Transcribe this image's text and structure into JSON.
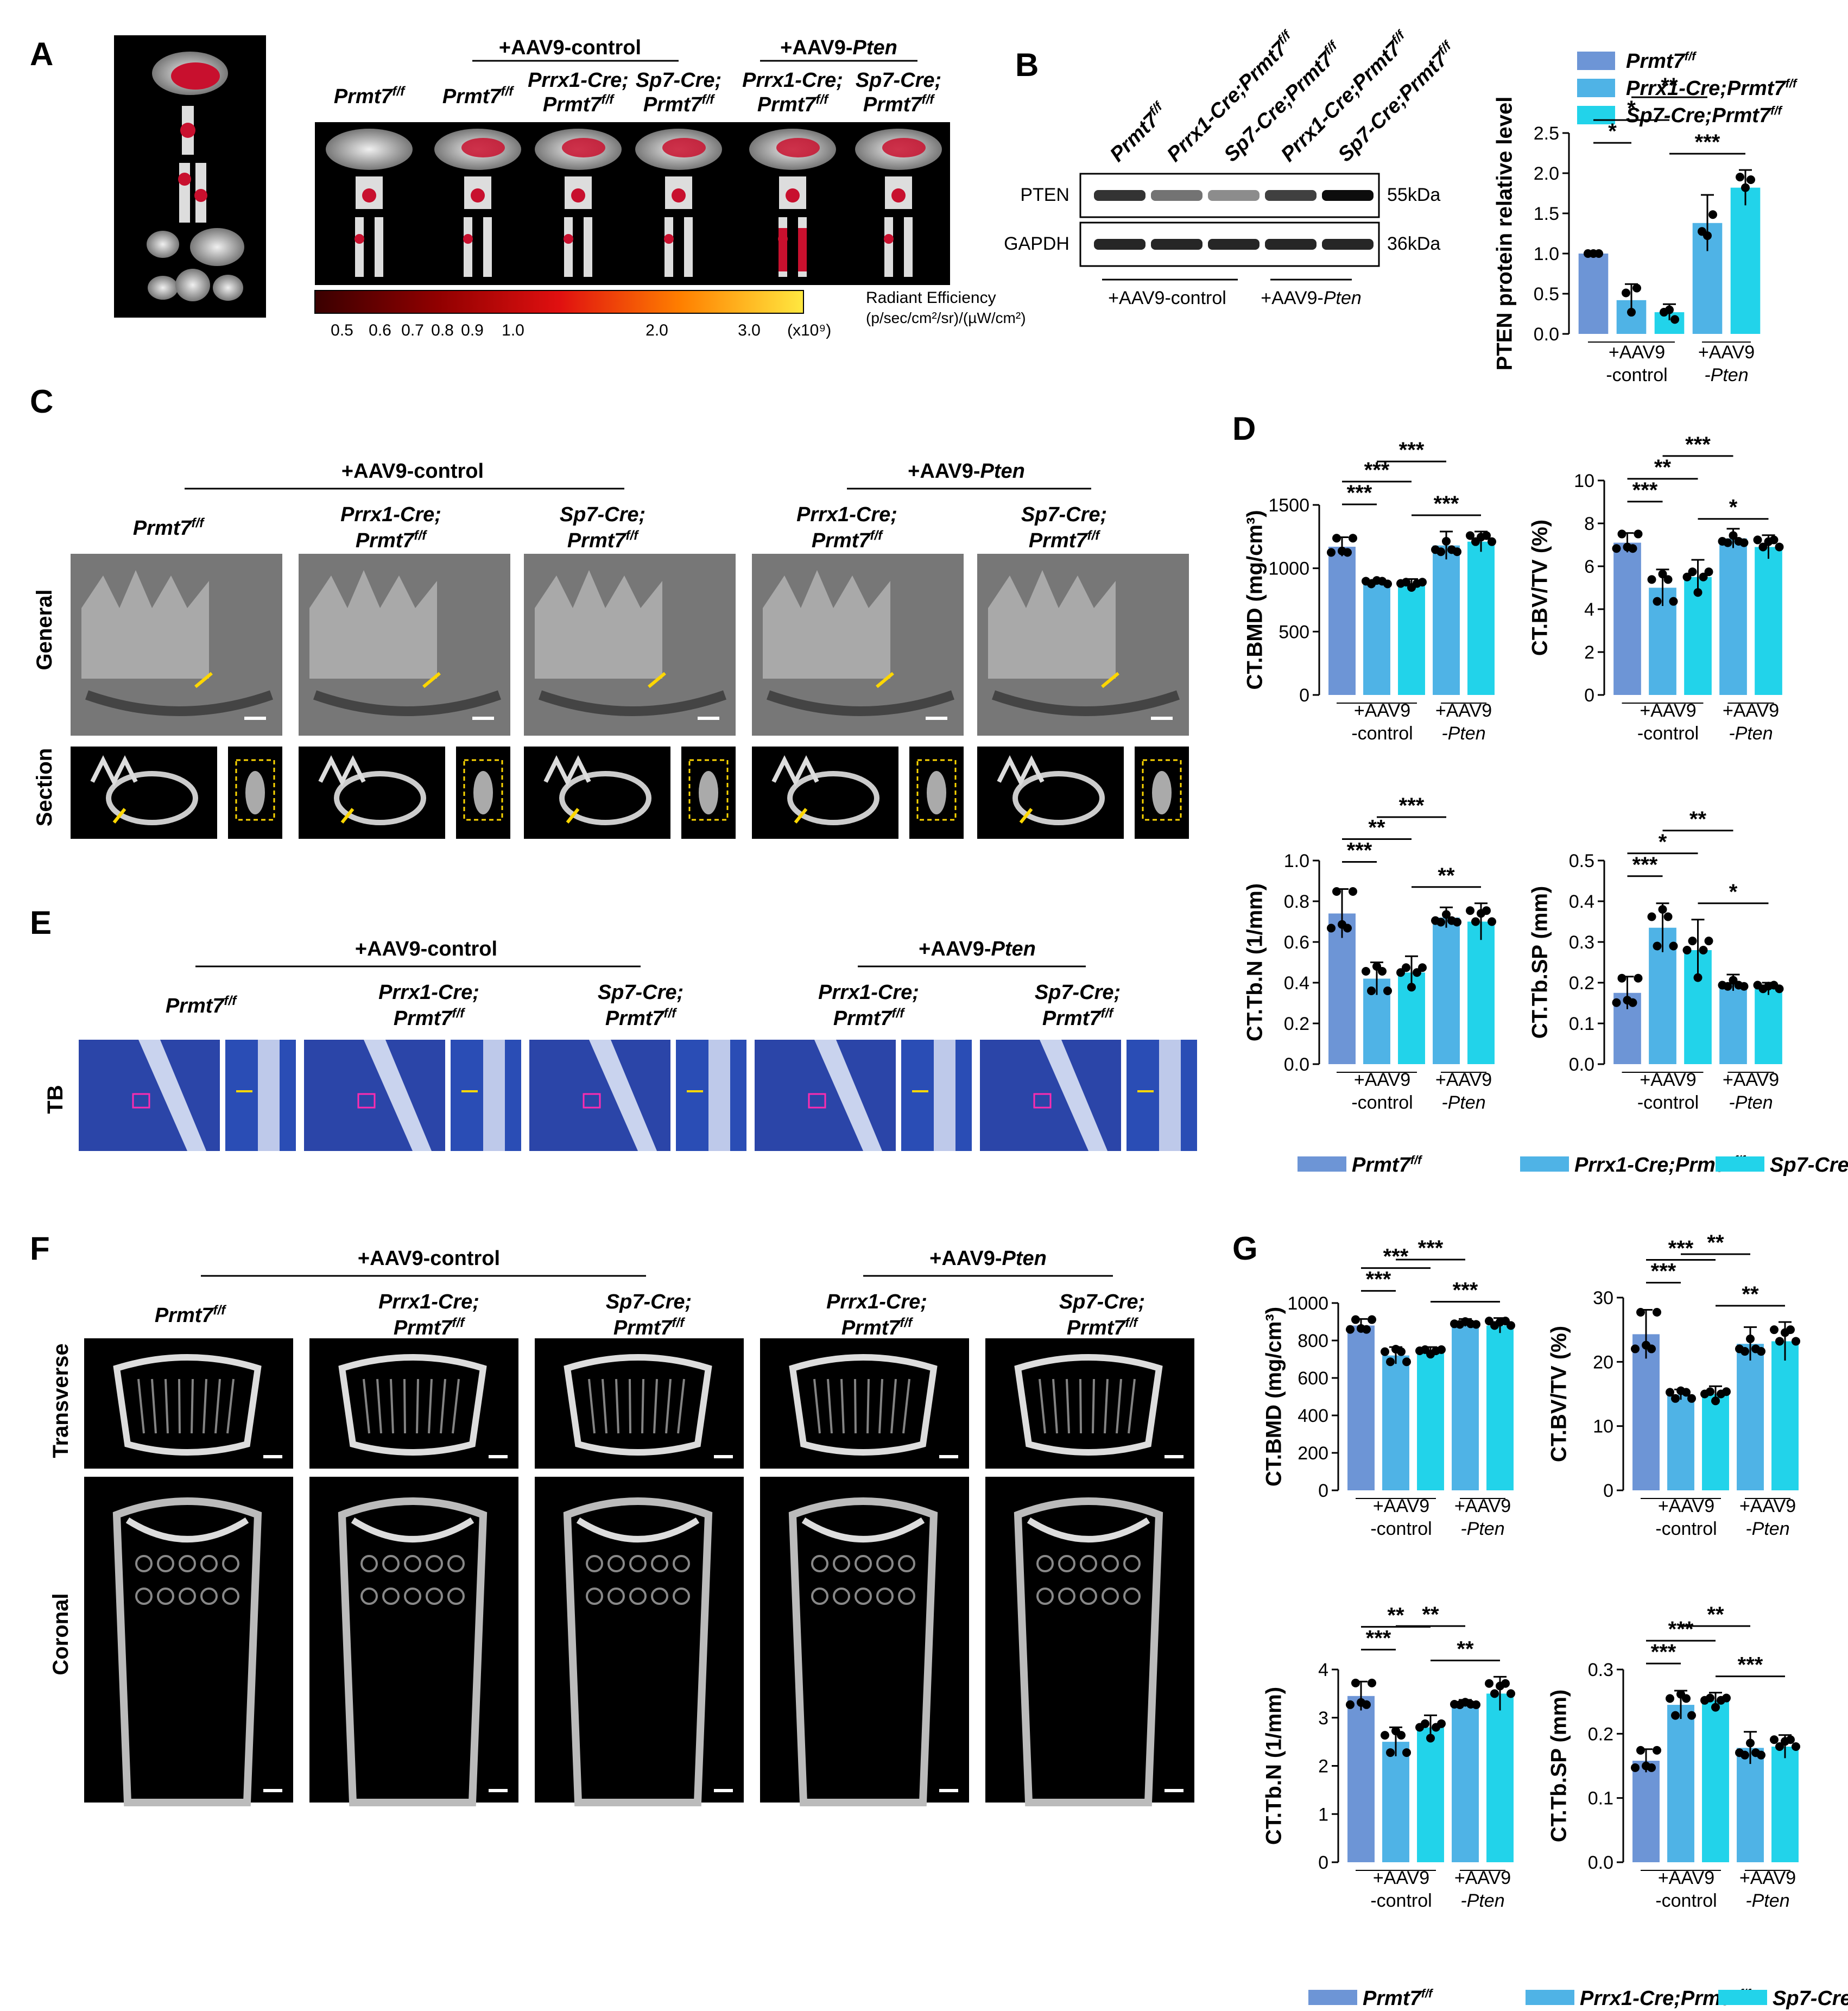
{
  "colors": {
    "g1": "#6d95d6",
    "g2": "#4fb3e6",
    "g3": "#22d3ea"
  },
  "groups": [
    "Prmt7",
    "Prrx1-Cre;Prmt7",
    "Sp7-Cre;Prmt7"
  ],
  "group_sup": "f/f",
  "panel_labels": {
    "A": "A",
    "B": "B",
    "C": "C",
    "D": "D",
    "E": "E",
    "F": "F",
    "G": "G"
  },
  "treatments": {
    "control": "+AAV9-control",
    "pten_prefix": "+AAV9-",
    "pten_gene": "Pten"
  },
  "axis_groups": {
    "ctrl1": "+AAV9",
    "ctrl2": "-control",
    "pten1": "+AAV9",
    "pten2": "-Pten"
  },
  "column_labels": {
    "c1": {
      "line1": "Prmt7",
      "sup": "f/f"
    },
    "c2": {
      "line1": "Prrx1-Cre;",
      "line2": "Prmt7",
      "sup": "f/f"
    },
    "c3": {
      "line1": "Sp7-Cre;",
      "line2": "Prmt7",
      "sup": "f/f"
    }
  },
  "panelA": {
    "colorbar_title": "Radiant Efficiency",
    "colorbar_units": "(p/sec/cm²/sr)/(µW/cm²)",
    "colorbar_ticks": [
      "0.5",
      "0.6",
      "0.7",
      "0.8",
      "0.9",
      "1.0",
      "2.0",
      "3.0"
    ],
    "colorbar_exp": "(x10⁹)"
  },
  "panelB": {
    "bands": [
      {
        "name": "PTEN",
        "kda": "55kDa"
      },
      {
        "name": "GAPDH",
        "kda": "36kDa"
      }
    ],
    "lanes": [
      "Prmt7f/f",
      "Prrx1-Cre;Prmt7f/f",
      "Sp7-Cre;Prmt7f/f",
      "Prrx1-Cre;Prmt7f/f",
      "Sp7-Cre;Prmt7f/f"
    ]
  },
  "panelC": {
    "rows": [
      "General",
      "Section"
    ]
  },
  "panelE": {
    "row": "TB"
  },
  "panelF": {
    "rows": [
      "Transverse",
      "Coronal"
    ]
  },
  "chart_data": [
    {
      "id": "B_pten",
      "type": "bar",
      "ylabel": "PTEN protein relative level",
      "ylim": [
        0,
        2.5
      ],
      "yticks": [
        "0.0",
        "0.5",
        "1.0",
        "1.5",
        "2.0",
        "2.5"
      ],
      "categories": [
        "Prmt7f/f +AAV9-control",
        "Prrx1-Cre;Prmt7f/f +AAV9-control",
        "Sp7-Cre;Prmt7f/f +AAV9-control",
        "Prrx1-Cre;Prmt7f/f +AAV9-Pten",
        "Sp7-Cre;Prmt7f/f +AAV9-Pten"
      ],
      "values": [
        1.0,
        0.42,
        0.27,
        1.38,
        1.82
      ],
      "errors": [
        0.0,
        0.2,
        0.1,
        0.35,
        0.22
      ],
      "sig": [
        [
          "*",
          0,
          1
        ],
        [
          "*",
          0,
          2
        ],
        [
          "**",
          1,
          3
        ],
        [
          "***",
          2,
          4
        ]
      ]
    },
    {
      "id": "D_bmd",
      "type": "bar",
      "ylabel": "CT.BMD (mg/cm³)",
      "ylim": [
        0,
        1500
      ],
      "yticks": [
        "0",
        "500",
        "1000",
        "1500"
      ],
      "values": [
        1170,
        890,
        880,
        1180,
        1210
      ],
      "errors": [
        75,
        18,
        35,
        110,
        80
      ],
      "sig": [
        [
          "***",
          0,
          1
        ],
        [
          "***",
          0,
          2
        ],
        [
          "***",
          1,
          3
        ],
        [
          "***",
          2,
          4
        ]
      ]
    },
    {
      "id": "D_bvtv",
      "type": "bar",
      "ylabel": "CT.BV/TV (%)",
      "ylim": [
        0,
        10
      ],
      "yticks": [
        "0",
        "2",
        "4",
        "6",
        "8",
        "10"
      ],
      "values": [
        7.1,
        5.0,
        5.5,
        7.3,
        6.9
      ],
      "errors": [
        0.45,
        0.85,
        0.8,
        0.45,
        0.55
      ],
      "sig": [
        [
          "***",
          0,
          1
        ],
        [
          "**",
          0,
          2
        ],
        [
          "***",
          1,
          3
        ],
        [
          "*",
          2,
          4
        ]
      ]
    },
    {
      "id": "D_tbn",
      "type": "bar",
      "ylabel": "CT.Tb.N (1/mm)",
      "ylim": [
        0,
        1.0
      ],
      "yticks": [
        "0.0",
        "0.2",
        "0.4",
        "0.6",
        "0.8",
        "1.0"
      ],
      "values": [
        0.74,
        0.42,
        0.45,
        0.72,
        0.7
      ],
      "errors": [
        0.12,
        0.08,
        0.08,
        0.05,
        0.09
      ],
      "sig": [
        [
          "***",
          0,
          1
        ],
        [
          "**",
          0,
          2
        ],
        [
          "***",
          1,
          3
        ],
        [
          "**",
          2,
          4
        ]
      ]
    },
    {
      "id": "D_tbsp",
      "type": "bar",
      "ylabel": "CT.Tb.SP (mm)",
      "ylim": [
        0,
        0.5
      ],
      "yticks": [
        "0.0",
        "0.1",
        "0.2",
        "0.3",
        "0.4",
        "0.5"
      ],
      "values": [
        0.175,
        0.335,
        0.28,
        0.2,
        0.185
      ],
      "errors": [
        0.04,
        0.06,
        0.075,
        0.02,
        0.015
      ],
      "sig": [
        [
          "***",
          0,
          1
        ],
        [
          "*",
          0,
          2
        ],
        [
          "**",
          1,
          3
        ],
        [
          "*",
          2,
          4
        ]
      ]
    },
    {
      "id": "G_bmd",
      "type": "bar",
      "ylabel": "CT.BMD (mg/cm³)",
      "ylim": [
        0,
        1000
      ],
      "yticks": [
        "0",
        "200",
        "400",
        "600",
        "800",
        "1000"
      ],
      "values": [
        880,
        720,
        745,
        895,
        880
      ],
      "errors": [
        35,
        45,
        20,
        20,
        40
      ],
      "sig": [
        [
          "***",
          0,
          1
        ],
        [
          "***",
          0,
          2
        ],
        [
          "***",
          1,
          3
        ],
        [
          "***",
          2,
          4
        ]
      ]
    },
    {
      "id": "G_bvtv",
      "type": "bar",
      "ylabel": "CT.BV/TV (%)",
      "ylim": [
        0,
        30
      ],
      "yticks": [
        "0",
        "10",
        "20",
        "30"
      ],
      "values": [
        24.3,
        14.9,
        15.0,
        22.8,
        23.2
      ],
      "errors": [
        3.8,
        0.8,
        1.2,
        2.6,
        3.0
      ],
      "sig": [
        [
          "***",
          0,
          1
        ],
        [
          "***",
          0,
          2
        ],
        [
          "**",
          1,
          3
        ],
        [
          "**",
          2,
          4
        ]
      ]
    },
    {
      "id": "G_tbn",
      "type": "bar",
      "ylabel": "CT.Tb.N (1/mm)",
      "ylim": [
        0,
        4
      ],
      "yticks": [
        "0",
        "1",
        "2",
        "3",
        "4"
      ],
      "values": [
        3.45,
        2.5,
        2.8,
        3.3,
        3.5
      ],
      "errors": [
        0.3,
        0.3,
        0.25,
        0.07,
        0.35
      ],
      "sig": [
        [
          "***",
          0,
          1
        ],
        [
          "**",
          0,
          2
        ],
        [
          "**",
          1,
          3
        ],
        [
          "**",
          2,
          4
        ]
      ]
    },
    {
      "id": "G_tbsp",
      "type": "bar",
      "ylabel": "CT.Tb.SP (mm)",
      "ylim": [
        0,
        0.3
      ],
      "yticks": [
        "0.0",
        "0.1",
        "0.2",
        "0.3"
      ],
      "values": [
        0.158,
        0.245,
        0.252,
        0.178,
        0.18
      ],
      "errors": [
        0.018,
        0.022,
        0.012,
        0.025,
        0.018
      ],
      "sig": [
        [
          "***",
          0,
          1
        ],
        [
          "***",
          0,
          2
        ],
        [
          "**",
          1,
          3
        ],
        [
          "***",
          2,
          4
        ]
      ]
    }
  ]
}
